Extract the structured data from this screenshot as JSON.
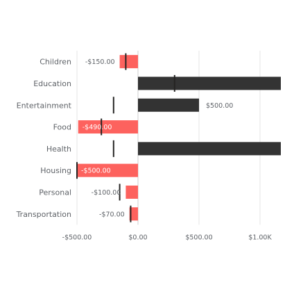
{
  "chart_data": {
    "type": "bar",
    "orientation": "horizontal",
    "categories": [
      "Children",
      "Education",
      "Entertainment",
      "Food",
      "Health",
      "Housing",
      "Personal",
      "Transportation"
    ],
    "series": [
      {
        "values": [
          -150,
          1300,
          500,
          -490,
          1300,
          -500,
          -100,
          -70
        ],
        "labels": [
          "-$150.00",
          "",
          "$500.00",
          "-$490.00",
          "",
          "-$500.00",
          "-$100.00",
          "-$70.00"
        ],
        "targets": [
          -100,
          300,
          -200,
          -300,
          -200,
          -500,
          -150,
          -60
        ]
      }
    ],
    "xticks": [
      {
        "value": -500,
        "label": "-$500.00"
      },
      {
        "value": 0,
        "label": "$0.00"
      },
      {
        "value": 500,
        "label": "$500.00"
      },
      {
        "value": 1000,
        "label": "$1.00K"
      }
    ],
    "xlim": [
      -500,
      1175
    ],
    "grid": true,
    "colors": {
      "negative": "#fd625e",
      "positive": "#333333",
      "target": "#252423",
      "label_on_negative": "#ffffff",
      "label_outside": "#5f6368"
    }
  }
}
